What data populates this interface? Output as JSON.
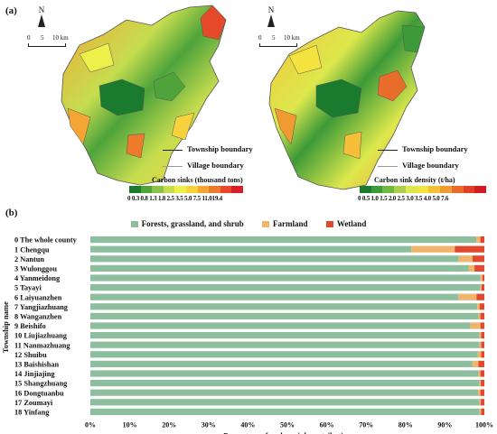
{
  "panel_a_label": "(a)",
  "panel_b_label": "(b)",
  "map_left": {
    "north_label": "N",
    "scale_labels": [
      "0",
      "5",
      "10 km"
    ],
    "legend_township": "Township boundary",
    "legend_village": "Village boundary",
    "colorbar_title": "Carbon sinks (thousand tons)",
    "colorbar_ticks": "0  0.3 0.8 1.3 1.8 2.5 3.5 5.0 7.5 11.019.4"
  },
  "map_right": {
    "north_label": "N",
    "scale_labels": [
      "0",
      "5",
      "10 km"
    ],
    "legend_township": "Township boundary",
    "legend_village": "Village boundary",
    "colorbar_title": "Carbon sink density (t/ha)",
    "colorbar_ticks": "0  0.5 1.0 1.5 2.0 2.5 3.0 3.5 4.0 5.0 7.6"
  },
  "colors": {
    "forest": "#8dbf9e",
    "farmland": "#f1b46b",
    "wetland": "#e0492d",
    "colorbar_left": [
      "#1a7a2e",
      "#4ea33b",
      "#8cc24a",
      "#c6dd4f",
      "#eef04a",
      "#f7d23d",
      "#f4a534",
      "#ee7a2c",
      "#e6482a",
      "#d81f26"
    ],
    "colorbar_right": [
      "#1a7a2e",
      "#3d9a38",
      "#71b843",
      "#a9d14b",
      "#dde84c",
      "#f4e23f",
      "#f6bf38",
      "#f29a32",
      "#ea6c2b",
      "#df3e27",
      "#cf1d23"
    ]
  },
  "chart_data": {
    "type": "bar",
    "orientation": "horizontal",
    "stacked": "percent",
    "ylabel": "Township name",
    "xlabel": "Percentage of carbon sink contribution",
    "xlim": [
      0,
      100
    ],
    "x_ticks": [
      "0%",
      "10%",
      "20%",
      "30%",
      "40%",
      "50%",
      "60%",
      "70%",
      "80%",
      "90%",
      "100%"
    ],
    "legend_position": "top-center",
    "categories": [
      "0 The whole county",
      "1 Chengqu",
      "2 Nantun",
      "3 Wulonggou",
      "4 Yanmeidong",
      "5 Tayayi",
      "6 Laiyuanzhen",
      "7 Yangjiazhuang",
      "8 Wanganzhen",
      "9 Beishifo",
      "10 Liujiazhuang",
      "11 Nanmazhuang",
      "12 Shuibu",
      "13 Baishishan",
      "14 Jinjiajing",
      "15 Shangzhuang",
      "16 Dongtuanbu",
      "17 Zoumayi",
      "18 Yinfang"
    ],
    "series": [
      {
        "name": "Forests, grassland, and shrub",
        "values": [
          98.0,
          81.5,
          93.5,
          96.0,
          99.0,
          99.0,
          93.5,
          98.2,
          98.5,
          96.5,
          98.8,
          98.8,
          98.3,
          97.0,
          98.5,
          98.8,
          98.4,
          98.8,
          98.8
        ]
      },
      {
        "name": "Farmland",
        "values": [
          1.0,
          11.0,
          3.5,
          1.5,
          0.5,
          0.3,
          4.5,
          0.6,
          0.5,
          2.5,
          0.4,
          0.4,
          0.9,
          1.5,
          0.5,
          0.3,
          0.6,
          0.3,
          0.4
        ]
      },
      {
        "name": "Wetland",
        "values": [
          1.0,
          7.5,
          3.0,
          2.5,
          0.5,
          0.7,
          2.0,
          1.2,
          1.0,
          1.0,
          0.8,
          0.8,
          0.8,
          1.5,
          1.0,
          0.9,
          1.0,
          0.9,
          0.8
        ]
      }
    ]
  }
}
